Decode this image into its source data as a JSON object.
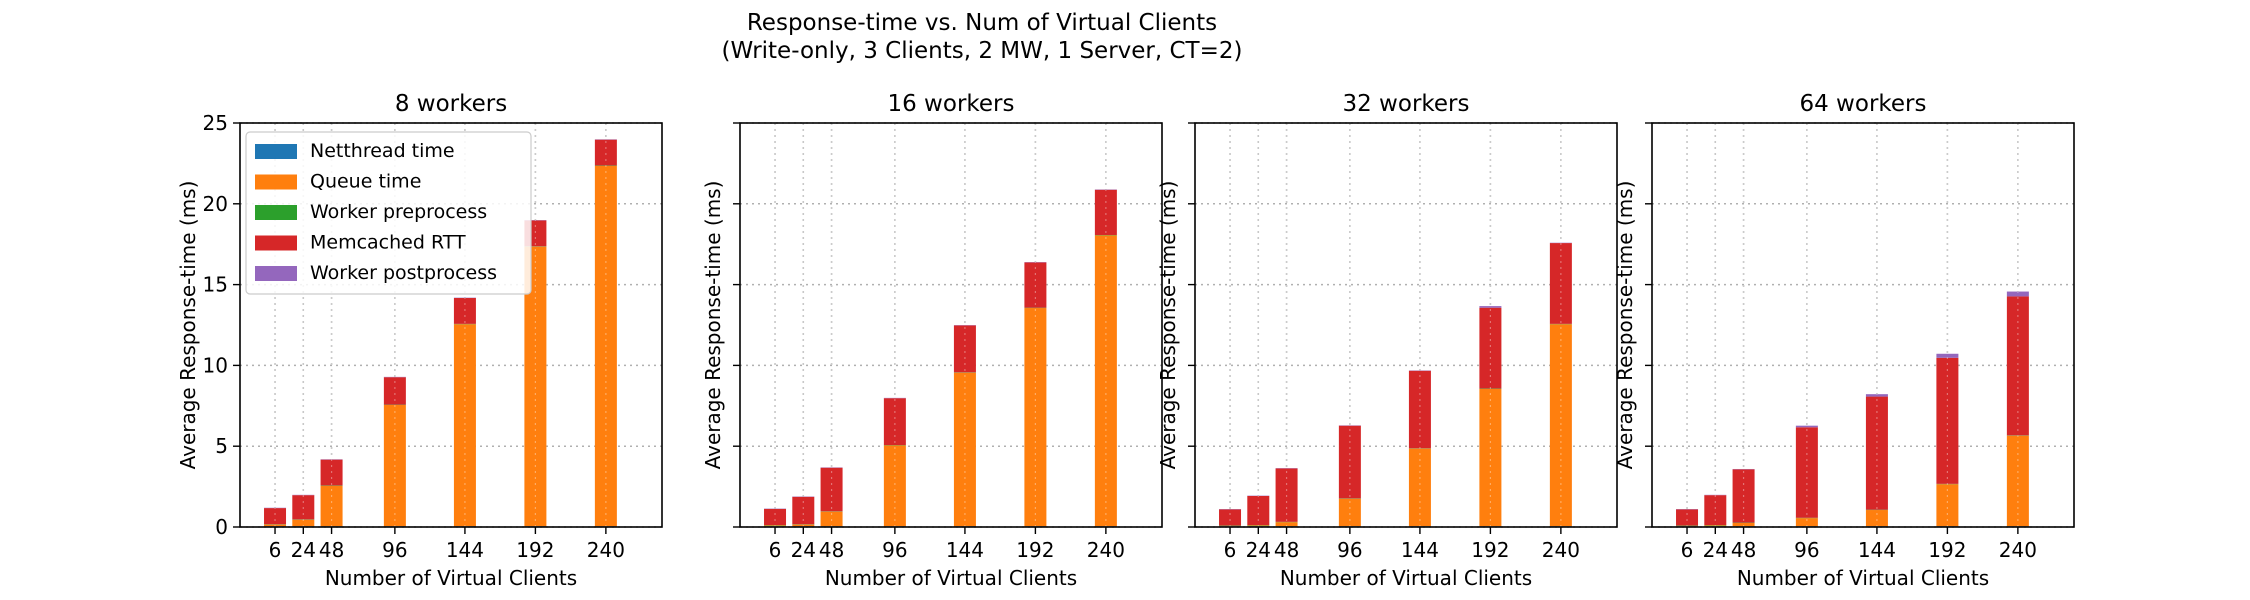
{
  "figure": {
    "title_line1": "Response-time vs. Num of Virtual Clients",
    "title_line2": "(Write-only, 3 Clients, 2 MW, 1 Server, CT=2)"
  },
  "legend": [
    {
      "name": "Netthread time",
      "color": "#1f77b4"
    },
    {
      "name": "Queue time",
      "color": "#ff7f0e"
    },
    {
      "name": "Worker preprocess",
      "color": "#2ca02c"
    },
    {
      "name": "Memcached RTT",
      "color": "#d62728"
    },
    {
      "name": "Worker postprocess",
      "color": "#9467bd"
    }
  ],
  "chart_data": [
    {
      "type": "bar",
      "stacked": true,
      "title": "8 workers",
      "xlabel": "Number of Virtual Clients",
      "ylabel": "Average Response-time (ms)",
      "ylim": [
        0,
        25
      ],
      "yticks": [
        0,
        5,
        10,
        15,
        20,
        25
      ],
      "grid": true,
      "legend_position": "upper-left",
      "categories": [
        6,
        24,
        48,
        96,
        144,
        192,
        240
      ],
      "series": [
        {
          "name": "Netthread time",
          "values": [
            0.05,
            0.05,
            0.05,
            0.05,
            0.05,
            0.05,
            0.05
          ]
        },
        {
          "name": "Queue time",
          "values": [
            0.1,
            0.4,
            2.5,
            7.5,
            12.5,
            17.3,
            22.3
          ]
        },
        {
          "name": "Worker preprocess",
          "values": [
            0.02,
            0.02,
            0.02,
            0.02,
            0.02,
            0.02,
            0.02
          ]
        },
        {
          "name": "Memcached RTT",
          "values": [
            1.0,
            1.5,
            1.6,
            1.7,
            1.6,
            1.6,
            1.6
          ]
        },
        {
          "name": "Worker postprocess",
          "values": [
            0.02,
            0.02,
            0.02,
            0.02,
            0.02,
            0.02,
            0.02
          ]
        }
      ]
    },
    {
      "type": "bar",
      "stacked": true,
      "title": "16 workers",
      "xlabel": "Number of Virtual Clients",
      "ylabel": "Average Response-time (ms)",
      "ylim": [
        0,
        25
      ],
      "yticks": [
        0,
        5,
        10,
        15,
        20,
        25
      ],
      "grid": true,
      "categories": [
        6,
        24,
        48,
        96,
        144,
        192,
        240
      ],
      "series": [
        {
          "name": "Netthread time",
          "values": [
            0.05,
            0.05,
            0.05,
            0.05,
            0.05,
            0.05,
            0.05
          ]
        },
        {
          "name": "Queue time",
          "values": [
            0.05,
            0.1,
            0.9,
            5.0,
            9.5,
            13.5,
            18.0
          ]
        },
        {
          "name": "Worker preprocess",
          "values": [
            0.02,
            0.02,
            0.02,
            0.02,
            0.02,
            0.02,
            0.02
          ]
        },
        {
          "name": "Memcached RTT",
          "values": [
            1.0,
            1.7,
            2.7,
            2.9,
            2.9,
            2.8,
            2.8
          ]
        },
        {
          "name": "Worker postprocess",
          "values": [
            0.02,
            0.02,
            0.02,
            0.02,
            0.02,
            0.02,
            0.02
          ]
        }
      ]
    },
    {
      "type": "bar",
      "stacked": true,
      "title": "32 workers",
      "xlabel": "Number of Virtual Clients",
      "ylabel": "Average Response-time (ms)",
      "ylim": [
        0,
        25
      ],
      "yticks": [
        0,
        5,
        10,
        15,
        20,
        25
      ],
      "grid": true,
      "categories": [
        6,
        24,
        48,
        96,
        144,
        192,
        240
      ],
      "series": [
        {
          "name": "Netthread time",
          "values": [
            0.05,
            0.05,
            0.05,
            0.05,
            0.05,
            0.05,
            0.05
          ]
        },
        {
          "name": "Queue time",
          "values": [
            0.02,
            0.05,
            0.25,
            1.7,
            4.8,
            8.5,
            12.5
          ]
        },
        {
          "name": "Worker preprocess",
          "values": [
            0.02,
            0.02,
            0.02,
            0.02,
            0.02,
            0.02,
            0.02
          ]
        },
        {
          "name": "Memcached RTT",
          "values": [
            1.0,
            1.8,
            3.3,
            4.5,
            4.8,
            5.0,
            5.0
          ]
        },
        {
          "name": "Worker postprocess",
          "values": [
            0.02,
            0.02,
            0.02,
            0.02,
            0.02,
            0.1,
            0.02
          ]
        }
      ]
    },
    {
      "type": "bar",
      "stacked": true,
      "title": "64 workers",
      "xlabel": "Number of Virtual Clients",
      "ylabel": "Average Response-time (ms)",
      "ylim": [
        0,
        25
      ],
      "yticks": [
        0,
        5,
        10,
        15,
        20,
        25
      ],
      "grid": true,
      "categories": [
        6,
        24,
        48,
        96,
        144,
        192,
        240
      ],
      "series": [
        {
          "name": "Netthread time",
          "values": [
            0.05,
            0.05,
            0.05,
            0.05,
            0.05,
            0.05,
            0.05
          ]
        },
        {
          "name": "Queue time",
          "values": [
            0.02,
            0.05,
            0.2,
            0.5,
            1.0,
            2.6,
            5.6
          ]
        },
        {
          "name": "Worker preprocess",
          "values": [
            0.02,
            0.02,
            0.02,
            0.02,
            0.02,
            0.02,
            0.02
          ]
        },
        {
          "name": "Memcached RTT",
          "values": [
            1.0,
            1.85,
            3.3,
            5.6,
            7.0,
            7.8,
            8.6
          ]
        },
        {
          "name": "Worker postprocess",
          "values": [
            0.02,
            0.02,
            0.02,
            0.1,
            0.15,
            0.25,
            0.3
          ]
        }
      ]
    }
  ]
}
